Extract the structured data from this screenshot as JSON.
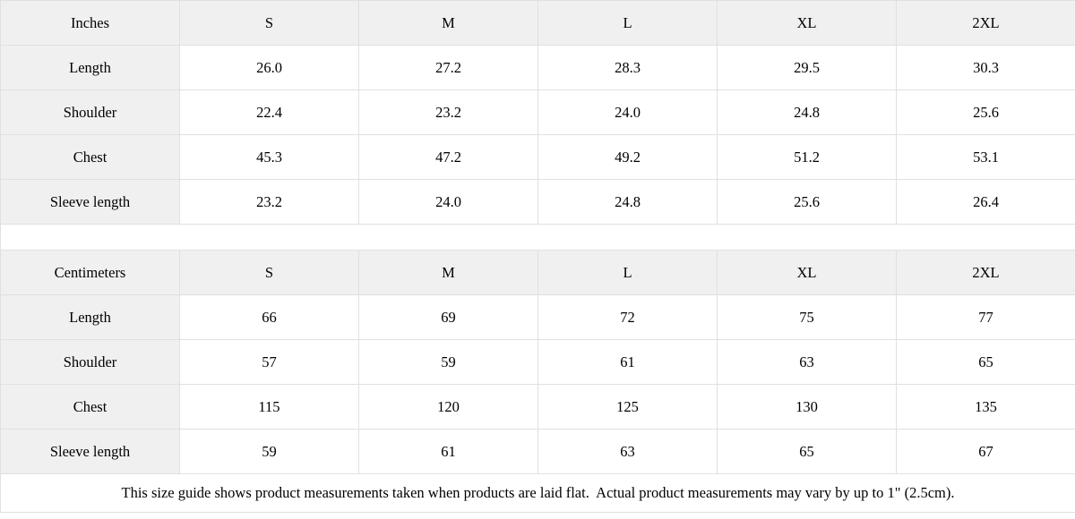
{
  "colors": {
    "header_bg": "#f0f0f0",
    "cell_bg": "#ffffff",
    "border": "#e0e0e0",
    "text": "#000000"
  },
  "tables": [
    {
      "unit_label": "Inches",
      "sizes": [
        "S",
        "M",
        "L",
        "XL",
        "2XL"
      ],
      "rows": [
        {
          "label": "Length",
          "values": [
            "26.0",
            "27.2",
            "28.3",
            "29.5",
            "30.3"
          ]
        },
        {
          "label": "Shoulder",
          "values": [
            "22.4",
            "23.2",
            "24.0",
            "24.8",
            "25.6"
          ]
        },
        {
          "label": "Chest",
          "values": [
            "45.3",
            "47.2",
            "49.2",
            "51.2",
            "53.1"
          ]
        },
        {
          "label": "Sleeve length",
          "values": [
            "23.2",
            "24.0",
            "24.8",
            "25.6",
            "26.4"
          ]
        }
      ]
    },
    {
      "unit_label": "Centimeters",
      "sizes": [
        "S",
        "M",
        "L",
        "XL",
        "2XL"
      ],
      "rows": [
        {
          "label": "Length",
          "values": [
            "66",
            "69",
            "72",
            "75",
            "77"
          ]
        },
        {
          "label": "Shoulder",
          "values": [
            "57",
            "59",
            "61",
            "63",
            "65"
          ]
        },
        {
          "label": "Chest",
          "values": [
            "115",
            "120",
            "125",
            "130",
            "135"
          ]
        },
        {
          "label": "Sleeve length",
          "values": [
            "59",
            "61",
            "63",
            "65",
            "67"
          ]
        }
      ]
    }
  ],
  "footer_note": "This size guide shows product measurements taken when products are laid flat.  Actual product measurements may vary by up to 1\" (2.5cm)."
}
